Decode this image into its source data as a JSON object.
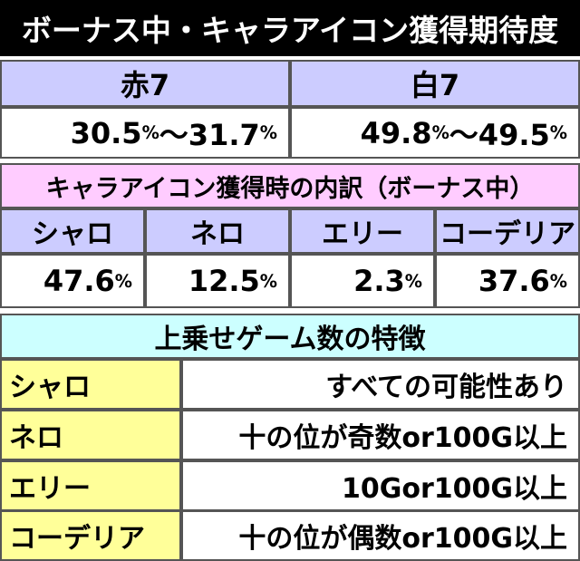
{
  "title": "ボーナス中・キャラアイコン獲得期待度",
  "expectation": {
    "headers": [
      "赤7",
      "白7"
    ],
    "values": [
      "30.5%～31.7%",
      "49.8%～49.5%"
    ]
  },
  "breakdown": {
    "title": "キャラアイコン獲得時の内訳（ボーナス中）",
    "headers": [
      "シャロ",
      "ネロ",
      "エリー",
      "コーデリア"
    ],
    "values": [
      "47.6%",
      "12.5%",
      "2.3%",
      "37.6%"
    ]
  },
  "features": {
    "title": "上乗せゲーム数の特徴",
    "rows": [
      [
        "シャロ",
        "すべての可能性あり"
      ],
      [
        "ネロ",
        "十の位が奇数or100G以上"
      ],
      [
        "エリー",
        "10Gor100G以上"
      ],
      [
        "コーデリア",
        "十の位が偶数or100G以上"
      ]
    ]
  }
}
